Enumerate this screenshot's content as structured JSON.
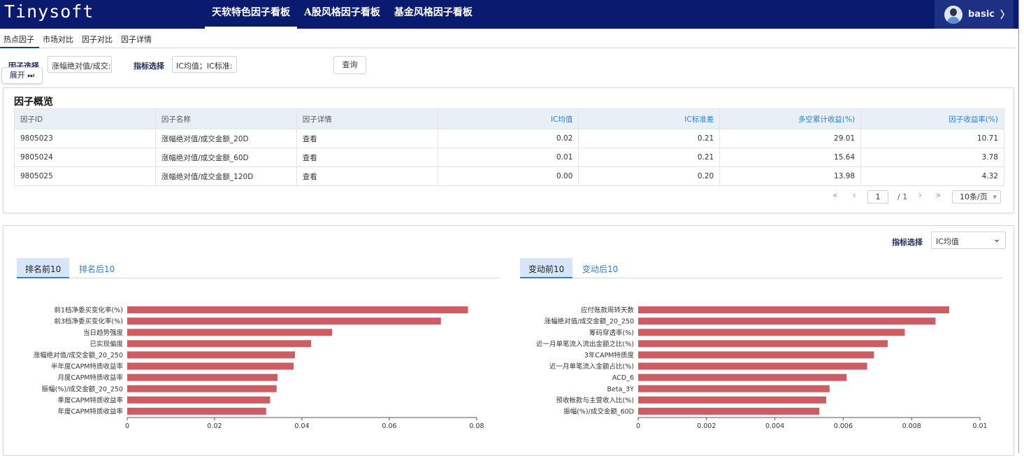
{
  "header": {
    "logo": "Tinysoft",
    "nav": [
      "天软特色因子看板",
      "A股风格因子看板",
      "基金风格因子看板"
    ],
    "user": "basic",
    "user_chevron": "〉"
  },
  "subnav": [
    "热点因子",
    "市场对比",
    "因子对比",
    "因子详情"
  ],
  "filters": {
    "factor_label": "因子选择",
    "factor_value": "涨幅绝对值/成交:",
    "indicator_label": "指标选择",
    "indicator_value": "IC均值；IC标准:",
    "query_button": "查询",
    "expand_button": "展开 ⏭"
  },
  "overview": {
    "title": "因子概览",
    "columns": [
      "因子ID",
      "因子名称",
      "因子详情",
      "IC均值",
      "IC标准差",
      "多空累计收益(%)",
      "因子收益率(%)"
    ],
    "rows": [
      {
        "id": "9805023",
        "name": "涨幅绝对值/成交金额_20D",
        "detail": "查看",
        "ic_mean": "0.02",
        "ic_std": "0.21",
        "ls_return": "29.01",
        "factor_return": "10.71"
      },
      {
        "id": "9805024",
        "name": "涨幅绝对值/成交金额_60D",
        "detail": "查看",
        "ic_mean": "0.01",
        "ic_std": "0.21",
        "ls_return": "15.64",
        "factor_return": "3.78"
      },
      {
        "id": "9805025",
        "name": "涨幅绝对值/成交金额_120D",
        "detail": "查看",
        "ic_mean": "0.00",
        "ic_std": "0.20",
        "ls_return": "13.98",
        "factor_return": "4.32"
      }
    ],
    "pager": {
      "first": "«",
      "prev": "‹",
      "page": "1",
      "total": "/ 1",
      "next": "›",
      "last": "»",
      "page_size": "10条/页",
      "page_size_arrow": "▾"
    }
  },
  "rank": {
    "indicator_label": "指标选择",
    "indicator_value": "IC均值",
    "indicator_arrow": "⌄",
    "left_tabs": [
      "排名前10",
      "排名后10"
    ],
    "right_tabs": [
      "变动前10",
      "变动后10"
    ]
  },
  "colors": {
    "bar": "#cd5c63",
    "header_bg": "#0a1a6e",
    "link": "#2f7fd0"
  },
  "chart_data": [
    {
      "type": "bar",
      "orientation": "horizontal",
      "categories": [
        "前1档净委买变化率(%)",
        "前3档净委买变化率(%)",
        "当日趋势强度",
        "已实现偏度",
        "涨幅绝对值/成交金额_20_250",
        "半年度CAPM特质收益率",
        "月度CAPM特质收益率",
        "振幅(%)/成交金额_20_250",
        "季度CAPM特质收益率",
        "年度CAPM特质收益率"
      ],
      "values": [
        0.078,
        0.0718,
        0.0469,
        0.0421,
        0.0384,
        0.0381,
        0.0344,
        0.0342,
        0.0327,
        0.0318
      ],
      "xlim": [
        0,
        0.08
      ],
      "xticks": [
        "0",
        "0.02",
        "0.04",
        "0.06",
        "0.08"
      ]
    },
    {
      "type": "bar",
      "orientation": "horizontal",
      "categories": [
        "应付账款周转天数",
        "涨幅绝对值/成交金额_20_250",
        "筹码穿透率(%)",
        "近一月单笔流入流出金额之比(%)",
        "3年CAPM特质度",
        "近一月单笔流入金额占比(%)",
        "ACD_6",
        "Beta_3Y",
        "预收帐款与主营收入比(%)",
        "振幅(%)/成交金额_60D"
      ],
      "values": [
        0.0091,
        0.0087,
        0.0078,
        0.0073,
        0.0069,
        0.0067,
        0.0061,
        0.0056,
        0.0055,
        0.0053
      ],
      "xlim": [
        0,
        0.01
      ],
      "xticks": [
        "0",
        "0.002",
        "0.004",
        "0.006",
        "0.008",
        "0.01"
      ]
    }
  ]
}
